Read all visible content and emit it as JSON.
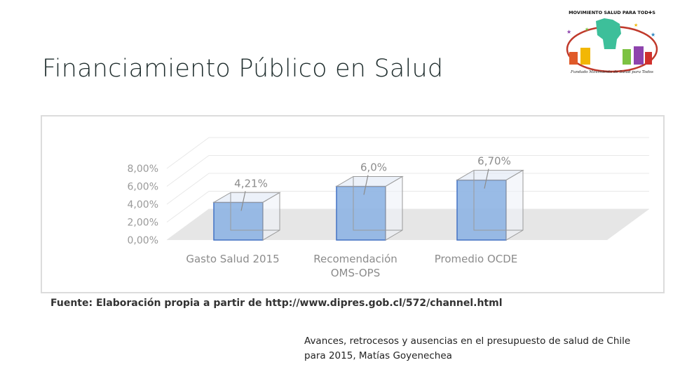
{
  "slide": {
    "title": "Financiamiento Público en Salud",
    "source": "Fuente: Elaboración propia a partir de http://www.dipres.gob.cl/572/channel.html",
    "caption": "Avances, retrocesos y ausencias en el presupuesto de salud de Chile para 2015, Matías Goyenechea"
  },
  "logo": {
    "top_text": "MOVIMIENTO SALUD PARA TOD✚S",
    "bottom_text": "Fundado Movimiento de Salud para Todos",
    "colors": {
      "fist": "#3dbf9a",
      "ring": "#c0392b",
      "houses": [
        "#e05a2a",
        "#f2b705",
        "#7cc242",
        "#8e44ad",
        "#d0312d"
      ]
    }
  },
  "chart_data": {
    "type": "bar",
    "style": "3d",
    "categories": [
      "Gasto Salud 2015",
      "Recomendación OMS-OPS",
      "Promedio OCDE"
    ],
    "category_label_lines": [
      [
        "Gasto Salud 2015"
      ],
      [
        "Recomendación",
        "OMS-OPS"
      ],
      [
        "Promedio OCDE"
      ]
    ],
    "values": [
      4.21,
      6.0,
      6.7
    ],
    "data_labels": [
      "4,21%",
      "6,0%",
      "6,70%"
    ],
    "y_ticks": [
      "0,00%",
      "2,00%",
      "4,00%",
      "6,00%",
      "8,00%"
    ],
    "ylim": [
      0,
      8
    ],
    "grid": true,
    "colors": {
      "bar_front": "#8eb4e3",
      "bar_edge": "#4472c4",
      "floor": "#e6e6e6",
      "tick_text": "#9a9a9a",
      "label_text": "#8c8c8c"
    }
  }
}
